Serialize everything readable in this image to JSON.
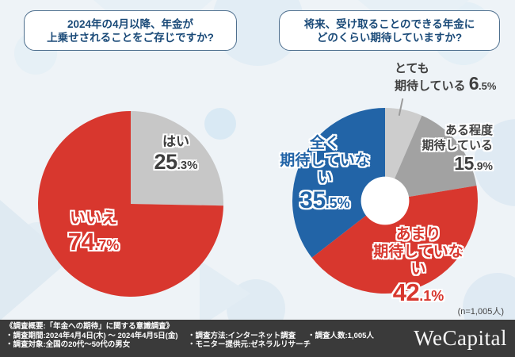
{
  "header": {
    "question_left": {
      "line1": "2024年の4月以降、年金が",
      "line2": "上乗せされることをご存じですか?"
    },
    "question_right": {
      "line1": "将来、受け取ることのできる年金に",
      "line2": "どのくらい期待していますか?"
    }
  },
  "chart_data": [
    {
      "type": "pie",
      "question": "2024年の4月以降、年金が上乗せされることをご存じですか?",
      "categories": [
        "はい",
        "いいえ"
      ],
      "values": [
        25.3,
        74.7
      ],
      "colors": [
        "#c7c7c7",
        "#d8372e"
      ],
      "start_angle_deg": 0,
      "direction": "clockwise",
      "legend_position": "on-chart"
    },
    {
      "type": "donut",
      "question": "将来、受け取ることのできる年金にどのくらい期待していますか?",
      "categories": [
        "とても期待している",
        "ある程度期待している",
        "あまり期待していない",
        "全く期待していない"
      ],
      "values": [
        6.5,
        15.9,
        42.1,
        35.5
      ],
      "colors": [
        "#cdcdcd",
        "#a2a2a2",
        "#d8372e",
        "#2264a7"
      ],
      "start_angle_deg": 0,
      "direction": "clockwise",
      "hole_ratio": 0.26,
      "sample_note": "(n=1,005人)",
      "legend_position": "on-chart"
    }
  ],
  "labels": {
    "hai": {
      "name": "はい",
      "pct_int": "25",
      "pct_frac": ".3%"
    },
    "iie": {
      "name": "いいえ",
      "pct_int": "74",
      "pct_frac": ".7%"
    },
    "totemo": {
      "line1": "とても",
      "line2": "期待している",
      "pct_int": "6",
      "pct_frac": ".5%"
    },
    "aruteido": {
      "line1": "ある程度",
      "line2": "期待している",
      "pct_int": "15",
      "pct_frac": ".9%"
    },
    "mattaku": {
      "line1": "全く",
      "line2": "期待していない",
      "pct_int": "35",
      "pct_frac": ".5%"
    },
    "amari": {
      "line1": "あまり",
      "line2": "期待していない",
      "pct_int": "42",
      "pct_frac": ".1%"
    }
  },
  "note": {
    "sample_size": "(n=1,005人)"
  },
  "footer": {
    "summary": "《調査概要:「年金への期待」に関する意識調査》",
    "period": "・調査期間:2024年4月4日(木) ～ 2024年4月5日(金)",
    "target": "・調査対象:全国の20代～50代の男女",
    "method": "・調査方法:インターネット調査",
    "monitor": "・モニター提供元:ゼネラルリサーチ",
    "count": "・調査人数:1,005人",
    "brand": "WeCapital"
  },
  "colors": {
    "red": "#d8372e",
    "blue": "#2264a7",
    "gray_light": "#cdcdcd",
    "gray": "#a2a2a2",
    "title_text": "#1a4a78",
    "footer_bg": "#3a3a3a",
    "background": "#eef3f7"
  }
}
